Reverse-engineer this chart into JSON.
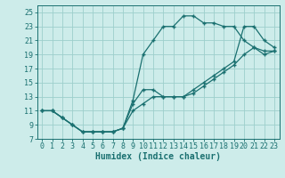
{
  "xlabel": "Humidex (Indice chaleur)",
  "bg_color": "#cdecea",
  "grid_color": "#9dcfcc",
  "line_color": "#1a7070",
  "xlim": [
    -0.5,
    23.5
  ],
  "ylim": [
    7,
    26
  ],
  "yticks": [
    7,
    9,
    11,
    13,
    15,
    17,
    19,
    21,
    23,
    25
  ],
  "xticks": [
    0,
    1,
    2,
    3,
    4,
    5,
    6,
    7,
    8,
    9,
    10,
    11,
    12,
    13,
    14,
    15,
    16,
    17,
    18,
    19,
    20,
    21,
    22,
    23
  ],
  "curve1_x": [
    0,
    1,
    2,
    3,
    4,
    5,
    6,
    7,
    8,
    9,
    10,
    11,
    12,
    13,
    14,
    15,
    16,
    17,
    18,
    19,
    20,
    21,
    22,
    23
  ],
  "curve1_y": [
    11,
    11,
    10,
    9,
    8,
    8,
    8,
    8,
    8.5,
    12.5,
    19,
    21,
    23,
    23,
    24.5,
    24.5,
    23.5,
    23.5,
    23,
    23,
    21,
    20,
    19.5,
    19.5
  ],
  "curve2_x": [
    0,
    1,
    2,
    3,
    4,
    5,
    6,
    7,
    8,
    9,
    10,
    11,
    12,
    13,
    14,
    15,
    16,
    17,
    18,
    19,
    20,
    21,
    22,
    23
  ],
  "curve2_y": [
    11,
    11,
    10,
    9,
    8,
    8,
    8,
    8,
    8.5,
    12,
    14,
    14,
    13,
    13,
    13,
    14,
    15,
    16,
    17,
    18,
    23,
    23,
    21,
    20
  ],
  "curve3_x": [
    0,
    1,
    2,
    3,
    4,
    5,
    6,
    7,
    8,
    9,
    10,
    11,
    12,
    13,
    14,
    15,
    16,
    17,
    18,
    19,
    20,
    21,
    22,
    23
  ],
  "curve3_y": [
    11,
    11,
    10,
    9,
    8,
    8,
    8,
    8,
    8.5,
    11,
    12,
    13,
    13,
    13,
    13,
    13.5,
    14.5,
    15.5,
    16.5,
    17.5,
    19,
    20,
    19,
    19.5
  ],
  "tick_fontsize": 6,
  "xlabel_fontsize": 7
}
